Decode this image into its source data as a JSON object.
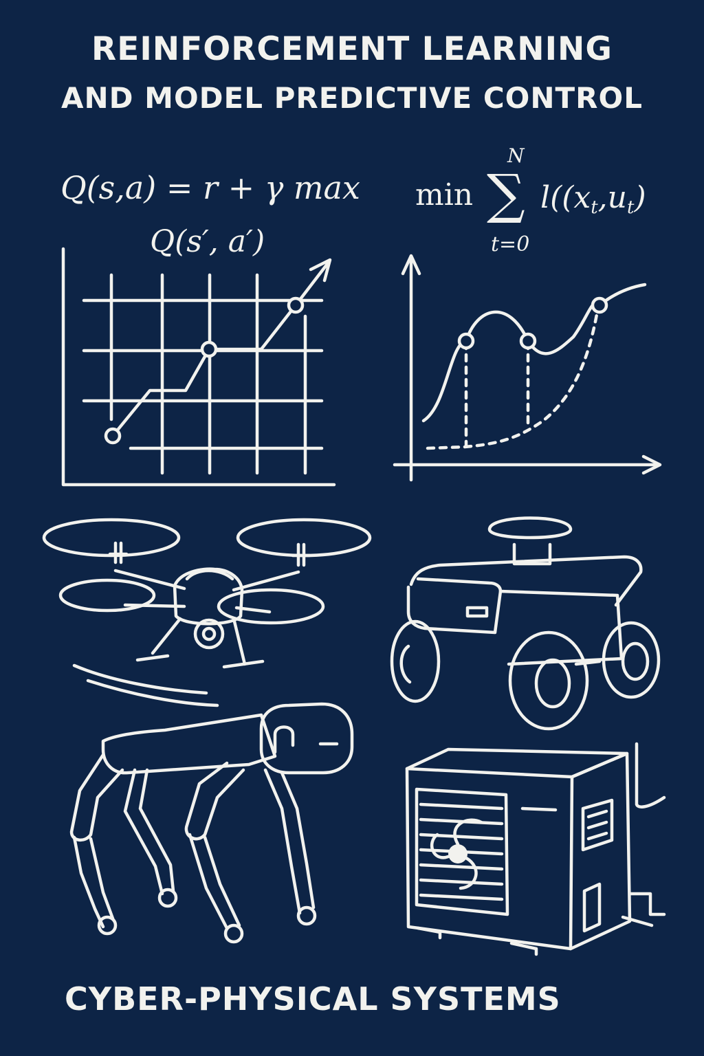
{
  "title": {
    "line1": "REINFORCEMENT LEARNING",
    "line2": "AND MODEL PREDICTIVE CONTROL"
  },
  "equations": {
    "q_learning_line1": "Q(s,a) = r + γ max",
    "q_learning_line2": "Q(s′, a′)",
    "mpc_min": "min",
    "mpc_sum": "∑",
    "mpc_upper": "N",
    "mpc_lower": "t=0",
    "mpc_loss_prefix": "l((x",
    "mpc_loss_sub1": "t",
    "mpc_loss_mid": ",u",
    "mpc_loss_sub2": "t",
    "mpc_loss_suffix": ")"
  },
  "footer": "CYBER-PHYSICAL SYSTEMS",
  "colors": {
    "background": "#0d2446",
    "ink": "#f2f2ee"
  },
  "illustrations": [
    "rl-learning-curve",
    "mpc-prediction-plot",
    "quadcopter-drone",
    "wheeled-mobile-robot",
    "quadruped-robot",
    "hvac-outdoor-unit"
  ]
}
